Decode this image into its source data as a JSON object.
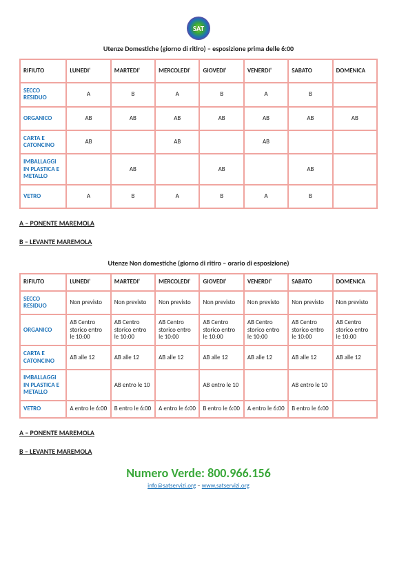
{
  "logo_text": "SAT",
  "table1": {
    "title": "Utenze Domestiche (giorno di ritiro) – esposizione prima delle 6:00",
    "headers": [
      "RIFIUTO",
      "LUNEDI'",
      "MARTEDI'",
      "MERCOLEDI'",
      "GIOVEDI'",
      "VENERDI'",
      "SABATO",
      "DOMENICA"
    ],
    "rows": [
      {
        "label": "SECCO RESIDUO",
        "cells": [
          "A",
          "B",
          "A",
          "B",
          "A",
          "B",
          ""
        ]
      },
      {
        "label": "ORGANICO",
        "cells": [
          "AB",
          "AB",
          "AB",
          "AB",
          "AB",
          "AB",
          "AB"
        ]
      },
      {
        "label": "CARTA E CATONCINO",
        "cells": [
          "AB",
          "",
          "AB",
          "",
          "AB",
          "",
          ""
        ]
      },
      {
        "label": "IMBALLAGGI IN PLASTICA E METALLO",
        "cells": [
          "",
          "AB",
          "",
          "AB",
          "",
          "AB",
          ""
        ]
      },
      {
        "label": "VETRO",
        "cells": [
          "A",
          "B",
          "A",
          "B",
          "A",
          "B",
          ""
        ]
      }
    ]
  },
  "legend_a": "A – PONENTE MAREMOLA",
  "legend_b": "B – LEVANTE MAREMOLA",
  "table2": {
    "title": "Utenze Non domestiche (giorno di ritiro – orario di esposizione)",
    "headers": [
      "RIFIUTO",
      "LUNEDI'",
      "MARTEDI'",
      "MERCOLEDI'",
      "GIOVEDI'",
      "VENERDI'",
      "SABATO",
      "DOMENICA"
    ],
    "rows": [
      {
        "label": "SECCO RESIDUO",
        "cells": [
          "Non previsto",
          "Non previsto",
          "Non previsto",
          "Non previsto",
          "Non previsto",
          "Non previsto",
          "Non previsto"
        ]
      },
      {
        "label": "ORGANICO",
        "cells": [
          "AB Centro storico entro le 10:00",
          "AB Centro storico entro le 10:00",
          "AB Centro storico entro le 10:00",
          "AB Centro storico entro le 10:00",
          "AB Centro storico entro le 10:00",
          "AB Centro storico entro le 10:00",
          "AB Centro storico entro le 10:00"
        ]
      },
      {
        "label": "CARTA E CATONCINO",
        "cells": [
          "AB alle 12",
          "AB alle 12",
          "AB alle 12",
          "AB alle 12",
          "AB alle 12",
          "AB alle 12",
          "AB alle 12"
        ]
      },
      {
        "label": "IMBALLAGGI IN PLASTICA E METALLO",
        "cells": [
          "",
          "AB entro le 10",
          "",
          "AB entro le 10",
          "",
          "AB entro le 10",
          ""
        ]
      },
      {
        "label": "VETRO",
        "cells": [
          "A entro le 6:00",
          "B entro le 6:00",
          "A entro le 6:00",
          "B entro le 6:00",
          "A entro le 6:00",
          "B entro le 6:00",
          ""
        ]
      }
    ]
  },
  "footer": {
    "numero": "Numero Verde: 800.966.156",
    "email": "info@satservizi.org",
    "sep": " – ",
    "web": "www.satservizi.org"
  },
  "colors": {
    "border": "#f0a5a0",
    "link": "#1d72b8",
    "green": "#3aa83a"
  }
}
